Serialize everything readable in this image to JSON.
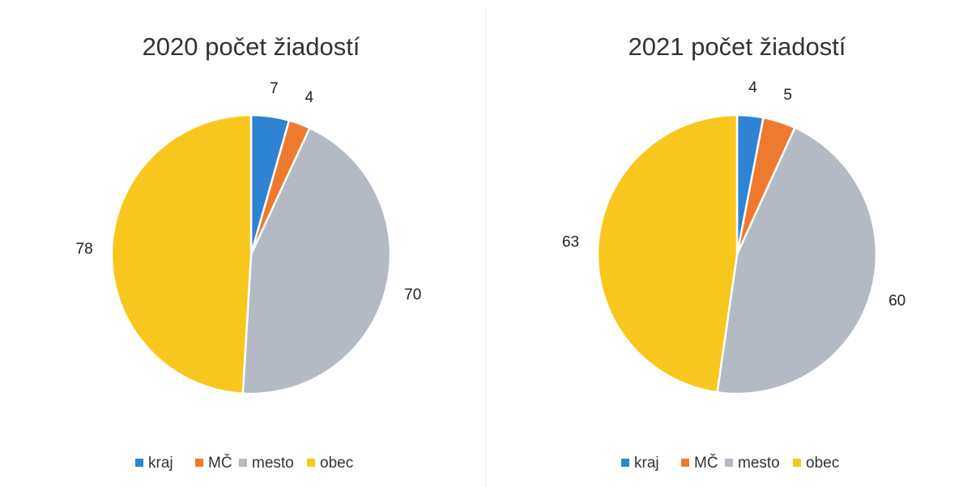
{
  "chart_data": [
    {
      "type": "pie",
      "title": "2020 počet žiadostí",
      "categories": [
        "kraj",
        "MČ",
        "mesto",
        "obec"
      ],
      "values": [
        7,
        4,
        70,
        78
      ],
      "colors": [
        "#2e83d4",
        "#ee7a30",
        "#b3bac4",
        "#f8c71e"
      ],
      "legend": "bottom"
    },
    {
      "type": "pie",
      "title": "2021 počet žiadostí",
      "categories": [
        "kraj",
        "MČ",
        "mesto",
        "obec"
      ],
      "values": [
        4,
        5,
        60,
        63
      ],
      "colors": [
        "#2e83d4",
        "#ee7a30",
        "#b3bac4",
        "#f8c71e"
      ],
      "legend": "bottom"
    }
  ]
}
